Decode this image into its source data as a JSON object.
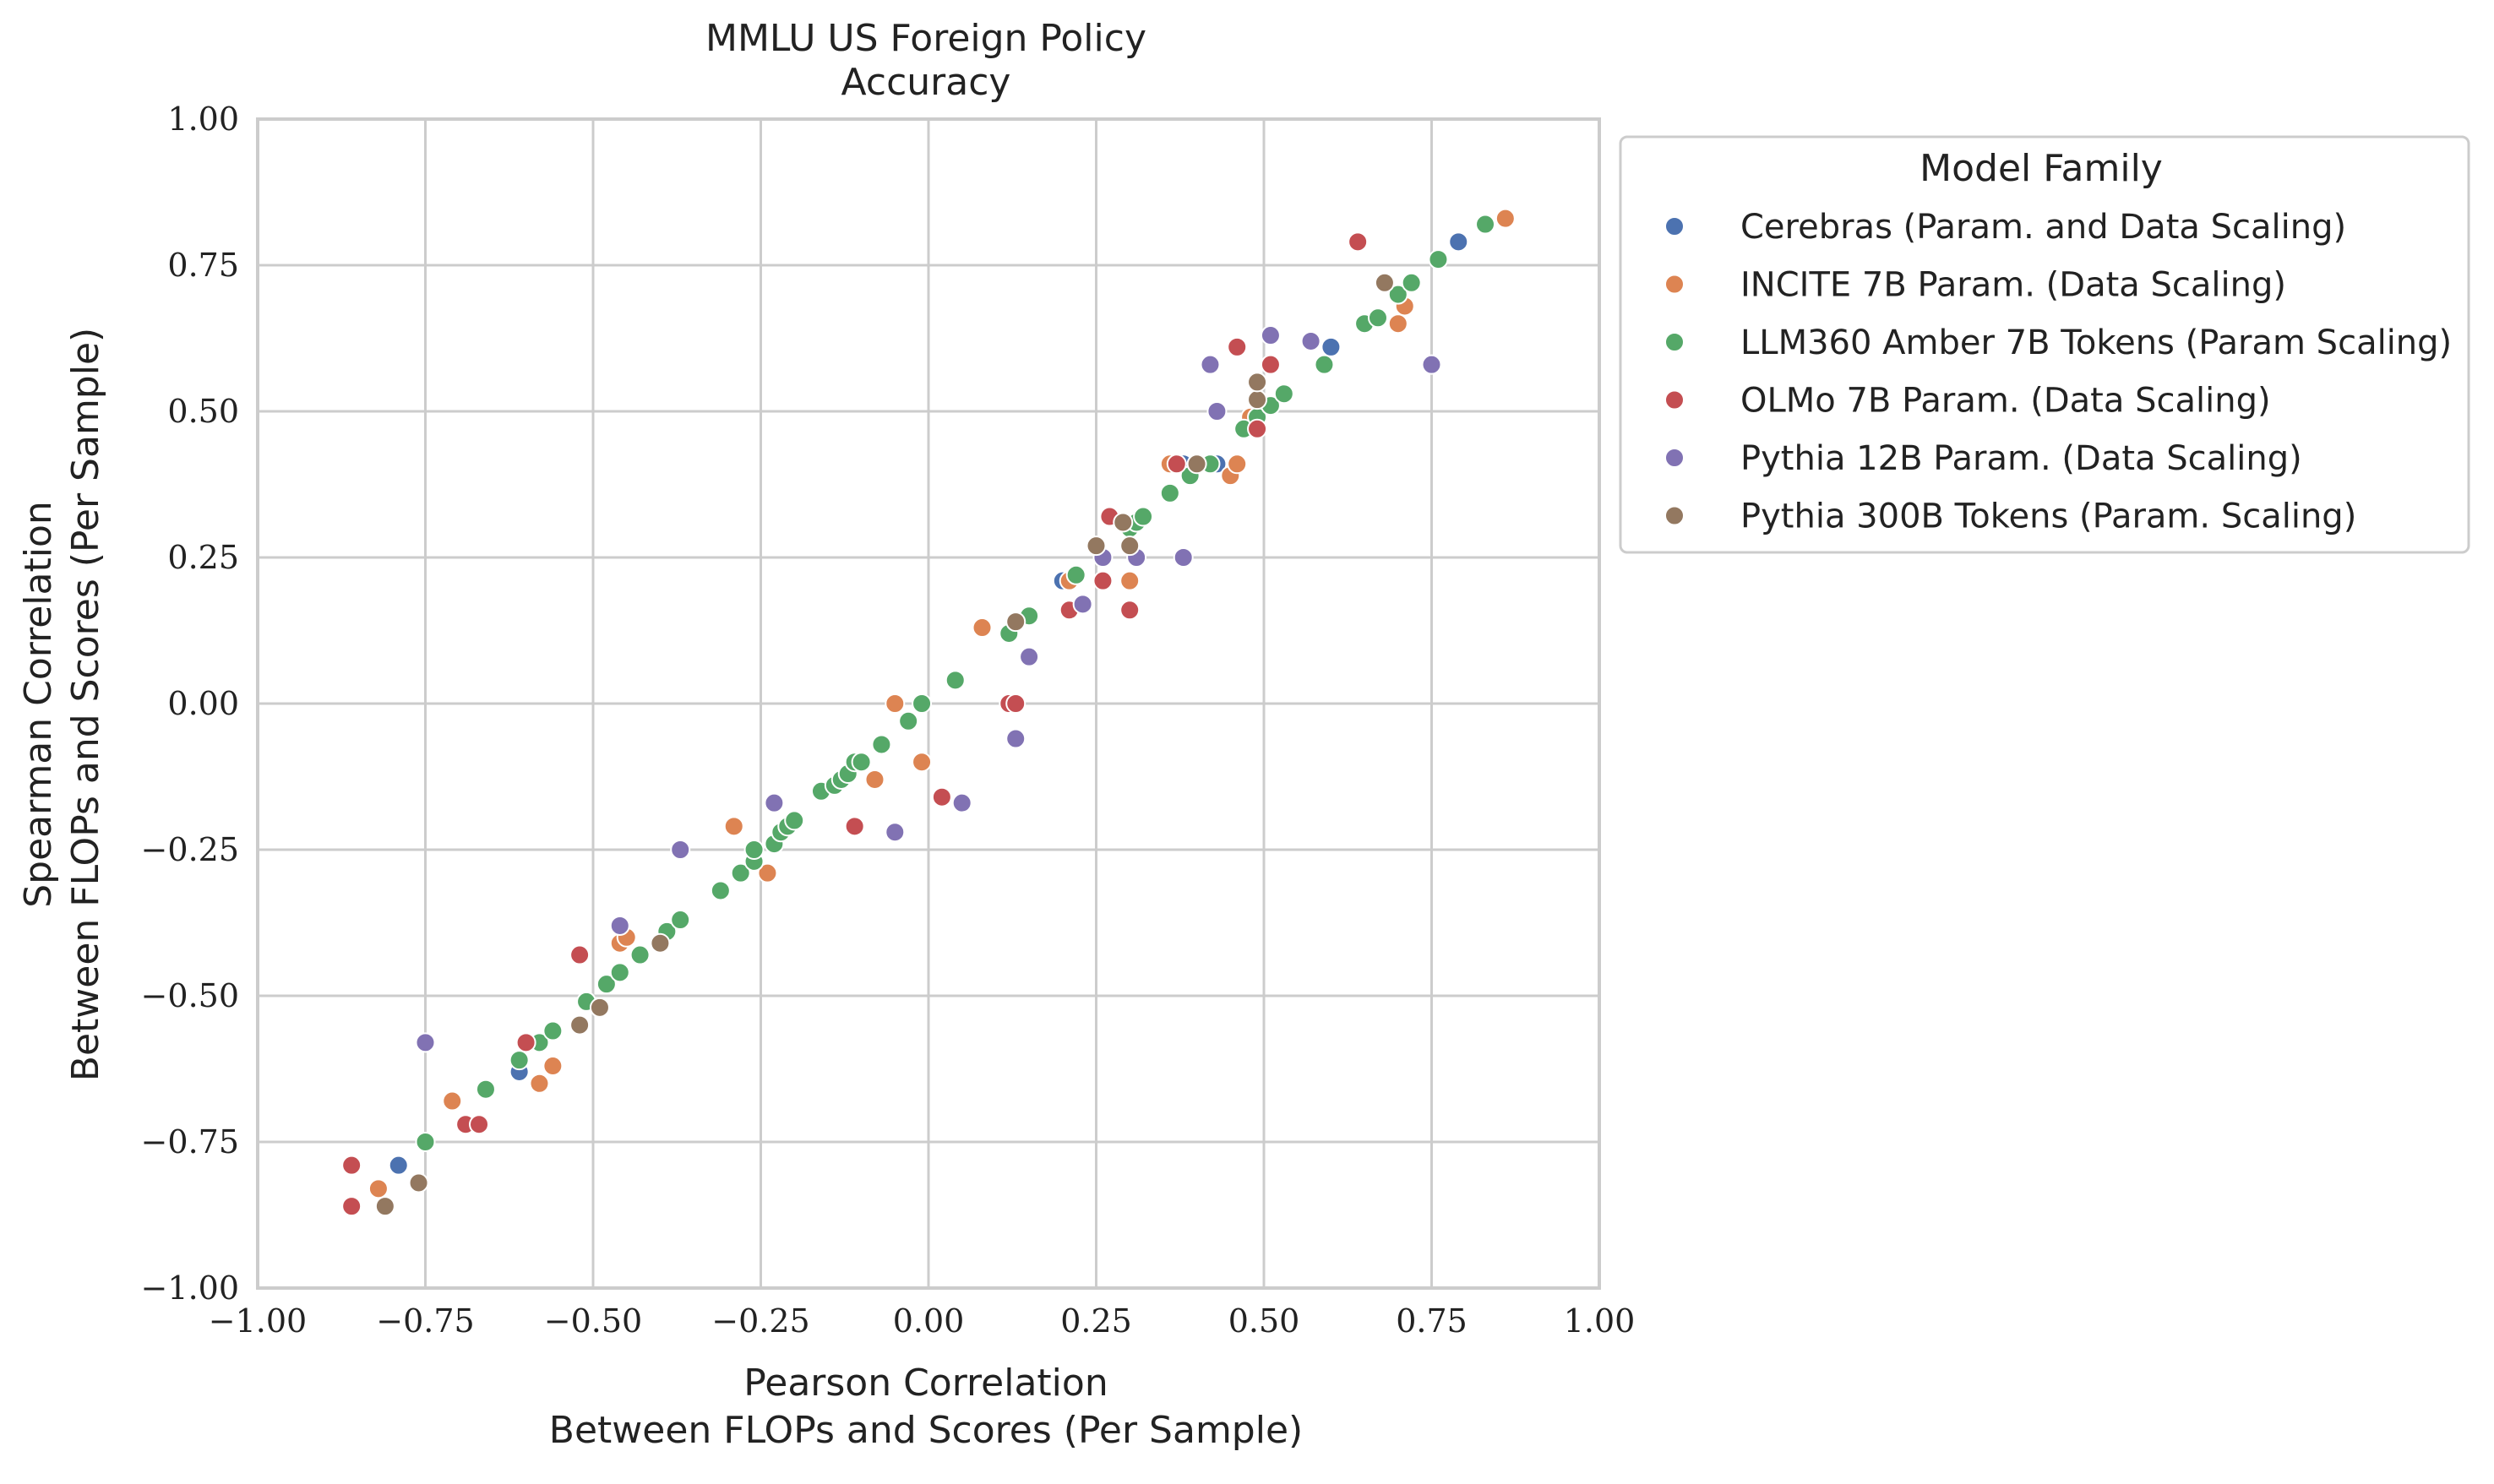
{
  "chart_data": {
    "type": "scatter",
    "title": [
      "MMLU US Foreign Policy",
      "Accuracy"
    ],
    "xlabel": [
      "Pearson Correlation",
      "Between FLOPs and Scores (Per Sample)"
    ],
    "ylabel": [
      "Spearman Correlation",
      "Between FLOPs and Scores (Per Sample)"
    ],
    "xlim": [
      -1.0,
      1.0
    ],
    "ylim": [
      -1.0,
      1.0
    ],
    "xticks": [
      -1.0,
      -0.75,
      -0.5,
      -0.25,
      0.0,
      0.25,
      0.5,
      0.75,
      1.0
    ],
    "yticks": [
      -1.0,
      -0.75,
      -0.5,
      -0.25,
      0.0,
      0.25,
      0.5,
      0.75,
      1.0
    ],
    "xtick_labels": [
      "−1.00",
      "−0.75",
      "−0.50",
      "−0.25",
      "0.00",
      "0.25",
      "0.50",
      "0.75",
      "1.00"
    ],
    "ytick_labels": [
      "−1.00",
      "−0.75",
      "−0.50",
      "−0.25",
      "0.00",
      "0.25",
      "0.50",
      "0.75",
      "1.00"
    ],
    "grid": true,
    "legend_title": "Model Family",
    "legend_position": "outside upper right",
    "series": [
      {
        "name": "Cerebras (Param. and Data Scaling)",
        "color": "#4c72b0",
        "points": [
          [
            -0.79,
            -0.79
          ],
          [
            -0.61,
            -0.63
          ],
          [
            0.2,
            0.21
          ],
          [
            0.43,
            0.41
          ],
          [
            0.6,
            0.61
          ],
          [
            0.79,
            0.79
          ],
          [
            0.49,
            0.48
          ],
          [
            0.38,
            0.41
          ]
        ]
      },
      {
        "name": "INCITE 7B Param. (Data Scaling)",
        "color": "#dd8452",
        "points": [
          [
            -0.82,
            -0.83
          ],
          [
            -0.71,
            -0.68
          ],
          [
            -0.58,
            -0.65
          ],
          [
            -0.56,
            -0.62
          ],
          [
            -0.46,
            -0.41
          ],
          [
            -0.45,
            -0.4
          ],
          [
            -0.29,
            -0.21
          ],
          [
            -0.24,
            -0.29
          ],
          [
            -0.13,
            -0.13
          ],
          [
            -0.08,
            -0.13
          ],
          [
            -0.05,
            0.0
          ],
          [
            -0.01,
            -0.1
          ],
          [
            0.08,
            0.13
          ],
          [
            0.21,
            0.21
          ],
          [
            0.3,
            0.21
          ],
          [
            0.36,
            0.41
          ],
          [
            0.45,
            0.39
          ],
          [
            0.46,
            0.41
          ],
          [
            0.48,
            0.49
          ],
          [
            0.7,
            0.65
          ],
          [
            0.71,
            0.68
          ],
          [
            0.86,
            0.83
          ]
        ]
      },
      {
        "name": "LLM360 Amber 7B Tokens (Param Scaling)",
        "color": "#55a868",
        "points": [
          [
            -0.75,
            -0.75
          ],
          [
            -0.66,
            -0.66
          ],
          [
            -0.61,
            -0.61
          ],
          [
            -0.58,
            -0.58
          ],
          [
            -0.56,
            -0.56
          ],
          [
            -0.51,
            -0.51
          ],
          [
            -0.48,
            -0.48
          ],
          [
            -0.46,
            -0.46
          ],
          [
            -0.43,
            -0.43
          ],
          [
            -0.39,
            -0.39
          ],
          [
            -0.37,
            -0.37
          ],
          [
            -0.31,
            -0.32
          ],
          [
            -0.28,
            -0.29
          ],
          [
            -0.26,
            -0.27
          ],
          [
            -0.26,
            -0.25
          ],
          [
            -0.23,
            -0.24
          ],
          [
            -0.22,
            -0.22
          ],
          [
            -0.21,
            -0.21
          ],
          [
            -0.2,
            -0.2
          ],
          [
            -0.16,
            -0.15
          ],
          [
            -0.14,
            -0.14
          ],
          [
            -0.13,
            -0.13
          ],
          [
            -0.12,
            -0.12
          ],
          [
            -0.11,
            -0.1
          ],
          [
            -0.1,
            -0.1
          ],
          [
            -0.07,
            -0.07
          ],
          [
            -0.03,
            -0.03
          ],
          [
            -0.01,
            0.0
          ],
          [
            0.04,
            0.04
          ],
          [
            0.12,
            0.12
          ],
          [
            0.15,
            0.15
          ],
          [
            0.22,
            0.22
          ],
          [
            0.3,
            0.3
          ],
          [
            0.31,
            0.31
          ],
          [
            0.32,
            0.32
          ],
          [
            0.36,
            0.36
          ],
          [
            0.39,
            0.39
          ],
          [
            0.42,
            0.41
          ],
          [
            0.47,
            0.47
          ],
          [
            0.49,
            0.49
          ],
          [
            0.51,
            0.51
          ],
          [
            0.53,
            0.53
          ],
          [
            0.59,
            0.58
          ],
          [
            0.65,
            0.65
          ],
          [
            0.67,
            0.66
          ],
          [
            0.7,
            0.7
          ],
          [
            0.72,
            0.72
          ],
          [
            0.76,
            0.76
          ],
          [
            0.83,
            0.82
          ]
        ]
      },
      {
        "name": "OLMo 7B Param. (Data Scaling)",
        "color": "#c44e52",
        "points": [
          [
            -0.86,
            -0.79
          ],
          [
            -0.86,
            -0.86
          ],
          [
            -0.69,
            -0.72
          ],
          [
            -0.67,
            -0.72
          ],
          [
            -0.6,
            -0.58
          ],
          [
            -0.52,
            -0.43
          ],
          [
            -0.11,
            -0.21
          ],
          [
            0.02,
            -0.16
          ],
          [
            0.12,
            0.0
          ],
          [
            0.13,
            0.0
          ],
          [
            0.21,
            0.16
          ],
          [
            0.26,
            0.21
          ],
          [
            0.27,
            0.32
          ],
          [
            0.3,
            0.16
          ],
          [
            0.37,
            0.41
          ],
          [
            0.46,
            0.61
          ],
          [
            0.49,
            0.47
          ],
          [
            0.51,
            0.58
          ],
          [
            0.64,
            0.79
          ]
        ]
      },
      {
        "name": "Pythia 12B Param. (Data Scaling)",
        "color": "#8172b3",
        "points": [
          [
            -0.75,
            -0.58
          ],
          [
            -0.46,
            -0.38
          ],
          [
            -0.37,
            -0.25
          ],
          [
            -0.23,
            -0.17
          ],
          [
            -0.05,
            -0.22
          ],
          [
            0.05,
            -0.17
          ],
          [
            0.13,
            -0.06
          ],
          [
            0.15,
            0.08
          ],
          [
            0.23,
            0.17
          ],
          [
            0.26,
            0.25
          ],
          [
            0.31,
            0.25
          ],
          [
            0.38,
            0.25
          ],
          [
            0.42,
            0.58
          ],
          [
            0.43,
            0.5
          ],
          [
            0.51,
            0.63
          ],
          [
            0.57,
            0.62
          ],
          [
            0.75,
            0.58
          ]
        ]
      },
      {
        "name": "Pythia 300B Tokens (Param. Scaling)",
        "color": "#937860",
        "points": [
          [
            -0.81,
            -0.86
          ],
          [
            -0.76,
            -0.82
          ],
          [
            -0.52,
            -0.55
          ],
          [
            -0.49,
            -0.52
          ],
          [
            -0.4,
            -0.41
          ],
          [
            0.13,
            0.14
          ],
          [
            0.25,
            0.27
          ],
          [
            0.29,
            0.31
          ],
          [
            0.3,
            0.27
          ],
          [
            0.4,
            0.41
          ],
          [
            0.49,
            0.52
          ],
          [
            0.49,
            0.55
          ],
          [
            0.68,
            0.72
          ]
        ]
      }
    ]
  }
}
